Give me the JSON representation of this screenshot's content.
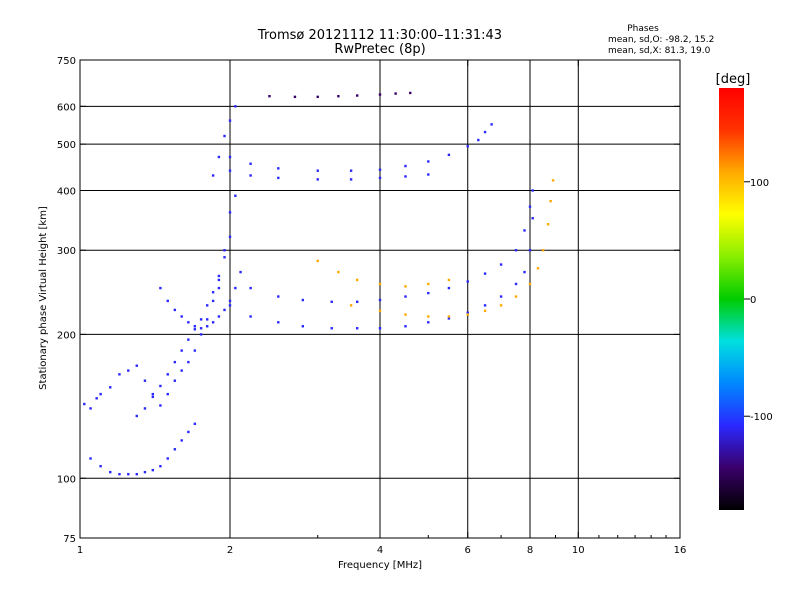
{
  "chart_data": {
    "type": "scatter",
    "title": "Tromsø 20121112 11:30:00–11:31:43",
    "subtitle": "RwPretec (8p)",
    "xlabel": "Frequency [MHz]",
    "ylabel": "Stationary phase Virtual Height [km]",
    "x_scale": "log",
    "y_scale": "log",
    "xlim": [
      1,
      16
    ],
    "ylim": [
      75,
      750
    ],
    "x_ticks": [
      1,
      2,
      4,
      6,
      8,
      10,
      16
    ],
    "y_ticks": [
      75,
      100,
      200,
      300,
      400,
      500,
      600,
      750
    ],
    "x_grid": [
      2,
      4,
      6,
      8,
      10
    ],
    "y_grid": [
      100,
      200,
      300,
      400,
      500,
      600
    ],
    "grid": true,
    "phase_stats": {
      "heading": "Phases",
      "line_o": "mean, sd,O: -98.2, 15.2",
      "line_x": "mean, sd,X:  81.3, 19.0"
    },
    "colorbar": {
      "label": "[deg]",
      "range": [
        -180,
        180
      ],
      "ticks": [
        100,
        0,
        -100
      ],
      "colors": [
        "#000000",
        "#3a006a",
        "#2a28ff",
        "#0088ff",
        "#00e0e0",
        "#00cc00",
        "#88ee00",
        "#ffff00",
        "#ffaa00",
        "#ff3300",
        "#ff0000"
      ]
    },
    "series": [
      {
        "phase": -110,
        "points": [
          [
            1.02,
            143
          ],
          [
            1.05,
            140
          ],
          [
            1.08,
            147
          ],
          [
            1.1,
            150
          ],
          [
            1.15,
            155
          ],
          [
            1.2,
            165
          ],
          [
            1.25,
            168
          ],
          [
            1.3,
            172
          ],
          [
            1.35,
            160
          ],
          [
            1.4,
            150
          ],
          [
            1.45,
            142
          ],
          [
            1.5,
            150
          ],
          [
            1.55,
            160
          ],
          [
            1.6,
            168
          ],
          [
            1.65,
            175
          ],
          [
            1.7,
            185
          ],
          [
            1.75,
            200
          ],
          [
            1.8,
            215
          ],
          [
            1.85,
            235
          ],
          [
            1.9,
            260
          ],
          [
            1.95,
            290
          ],
          [
            2.0,
            320
          ]
        ]
      },
      {
        "phase": -110,
        "points": [
          [
            1.05,
            110
          ],
          [
            1.1,
            106
          ],
          [
            1.15,
            103
          ],
          [
            1.2,
            102
          ],
          [
            1.25,
            102
          ],
          [
            1.3,
            102
          ],
          [
            1.35,
            103
          ],
          [
            1.4,
            104
          ],
          [
            1.45,
            106
          ],
          [
            1.5,
            110
          ],
          [
            1.55,
            115
          ],
          [
            1.6,
            120
          ],
          [
            1.65,
            125
          ],
          [
            1.7,
            130
          ]
        ]
      },
      {
        "phase": -105,
        "points": [
          [
            1.3,
            135
          ],
          [
            1.35,
            140
          ],
          [
            1.4,
            148
          ],
          [
            1.45,
            156
          ],
          [
            1.5,
            165
          ],
          [
            1.55,
            175
          ],
          [
            1.6,
            185
          ],
          [
            1.65,
            195
          ],
          [
            1.7,
            205
          ],
          [
            1.75,
            215
          ],
          [
            1.8,
            230
          ],
          [
            1.85,
            245
          ],
          [
            1.9,
            265
          ],
          [
            1.95,
            300
          ],
          [
            2.0,
            360
          ],
          [
            2.05,
            390
          ]
        ]
      },
      {
        "phase": -110,
        "points": [
          [
            1.45,
            250
          ],
          [
            1.5,
            235
          ],
          [
            1.55,
            225
          ],
          [
            1.6,
            218
          ],
          [
            1.65,
            212
          ],
          [
            1.7,
            208
          ],
          [
            1.75,
            206
          ],
          [
            1.8,
            208
          ],
          [
            1.85,
            212
          ],
          [
            1.9,
            218
          ],
          [
            1.95,
            225
          ],
          [
            2.0,
            235
          ],
          [
            2.05,
            250
          ],
          [
            2.1,
            270
          ]
        ]
      },
      {
        "phase": -115,
        "points": [
          [
            1.9,
            250
          ],
          [
            2.0,
            230
          ],
          [
            2.2,
            218
          ],
          [
            2.5,
            212
          ],
          [
            2.8,
            208
          ],
          [
            3.2,
            206
          ],
          [
            3.6,
            206
          ],
          [
            4.0,
            206
          ],
          [
            4.5,
            208
          ],
          [
            5.0,
            212
          ],
          [
            5.5,
            216
          ],
          [
            6.0,
            222
          ],
          [
            6.5,
            230
          ],
          [
            7.0,
            240
          ],
          [
            7.5,
            255
          ],
          [
            7.8,
            270
          ],
          [
            8.0,
            300
          ],
          [
            8.1,
            350
          ]
        ]
      },
      {
        "phase": -110,
        "points": [
          [
            2.2,
            250
          ],
          [
            2.5,
            240
          ],
          [
            2.8,
            236
          ],
          [
            3.2,
            234
          ],
          [
            3.6,
            234
          ],
          [
            4.0,
            236
          ],
          [
            4.5,
            240
          ],
          [
            5.0,
            244
          ],
          [
            5.5,
            250
          ],
          [
            6.0,
            258
          ],
          [
            6.5,
            268
          ],
          [
            7.0,
            280
          ],
          [
            7.5,
            300
          ],
          [
            7.8,
            330
          ],
          [
            8.0,
            370
          ],
          [
            8.1,
            400
          ]
        ]
      },
      {
        "phase": 95,
        "points": [
          [
            3.0,
            285
          ],
          [
            3.3,
            270
          ],
          [
            3.6,
            260
          ],
          [
            4.0,
            255
          ],
          [
            4.5,
            252
          ],
          [
            5.0,
            255
          ],
          [
            5.5,
            260
          ]
        ]
      },
      {
        "phase": 100,
        "points": [
          [
            3.5,
            230
          ],
          [
            4.0,
            224
          ],
          [
            4.5,
            220
          ],
          [
            5.0,
            218
          ],
          [
            5.5,
            218
          ],
          [
            6.0,
            220
          ],
          [
            6.5,
            224
          ],
          [
            7.0,
            230
          ],
          [
            7.5,
            240
          ],
          [
            8.0,
            255
          ],
          [
            8.3,
            275
          ],
          [
            8.5,
            300
          ],
          [
            8.7,
            340
          ],
          [
            8.8,
            380
          ],
          [
            8.9,
            420
          ]
        ]
      },
      {
        "phase": -110,
        "points": [
          [
            2.0,
            470
          ],
          [
            2.2,
            455
          ],
          [
            2.5,
            445
          ],
          [
            3.0,
            440
          ],
          [
            3.5,
            440
          ],
          [
            4.0,
            442
          ],
          [
            4.5,
            450
          ],
          [
            5.0,
            460
          ],
          [
            5.5,
            475
          ],
          [
            6.0,
            495
          ],
          [
            6.3,
            510
          ],
          [
            6.5,
            530
          ],
          [
            6.7,
            550
          ]
        ]
      },
      {
        "phase": -110,
        "points": [
          [
            2.0,
            440
          ],
          [
            2.2,
            430
          ],
          [
            2.5,
            425
          ],
          [
            3.0,
            422
          ],
          [
            3.5,
            422
          ],
          [
            4.0,
            425
          ],
          [
            4.5,
            428
          ],
          [
            5.0,
            432
          ]
        ]
      },
      {
        "phase": -110,
        "points": [
          [
            1.85,
            430
          ],
          [
            1.9,
            470
          ],
          [
            1.95,
            520
          ],
          [
            2.0,
            560
          ],
          [
            2.05,
            600
          ]
        ]
      },
      {
        "phase": -130,
        "points": [
          [
            2.4,
            630
          ],
          [
            2.7,
            628
          ],
          [
            3.0,
            628
          ],
          [
            3.3,
            630
          ],
          [
            3.6,
            632
          ],
          [
            4.0,
            635
          ],
          [
            4.3,
            638
          ],
          [
            4.6,
            640
          ]
        ]
      }
    ]
  }
}
